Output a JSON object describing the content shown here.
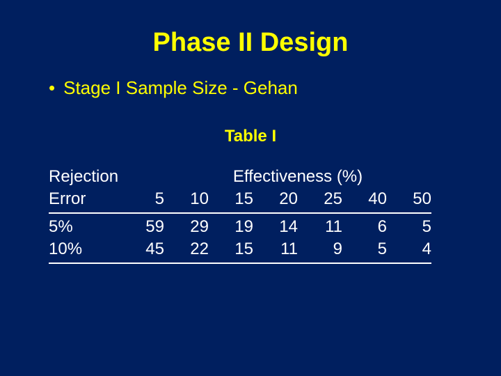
{
  "background_color": "#001f5f",
  "accent_color": "#ffff00",
  "text_color": "#ffffff",
  "title": "Phase II Design",
  "bullet": "Stage I Sample Size - Gehan",
  "table": {
    "caption": "Table I",
    "row_header_top": "Rejection",
    "row_header_bottom": "Error",
    "span_header": "Effectiveness (%)",
    "col_headers": [
      "5",
      "10",
      "15",
      "20",
      "25",
      "40",
      "50"
    ],
    "rows": [
      {
        "label": "5%",
        "values": [
          "59",
          "29",
          "19",
          "14",
          "11",
          "6",
          "5"
        ]
      },
      {
        "label": "10%",
        "values": [
          "45",
          "22",
          "15",
          "11",
          "9",
          "5",
          "4"
        ]
      }
    ]
  }
}
